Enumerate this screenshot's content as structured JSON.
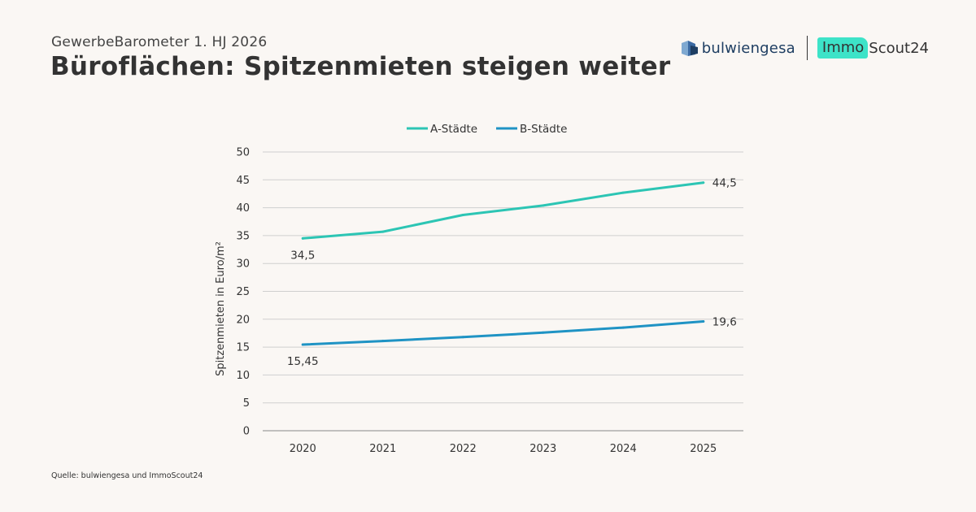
{
  "header": {
    "supertitle": "GewerbeBarometer 1. HJ 2026",
    "title": "Büroflächen: Spitzenmieten steigen weiter"
  },
  "logos": {
    "bulwiengesa": "bulwiengesa",
    "immo": "Immo",
    "scout": "Scout24"
  },
  "source": "Quelle: bulwiengesa und ImmoScout24",
  "chart_data": {
    "type": "line",
    "x": [
      "2020",
      "2021",
      "2022",
      "2023",
      "2024",
      "2025"
    ],
    "series": [
      {
        "name": "A-Städte",
        "color": "#2cc5b4",
        "values": [
          34.5,
          35.7,
          38.7,
          40.4,
          42.7,
          44.5
        ]
      },
      {
        "name": "B-Städte",
        "color": "#1f93c4",
        "values": [
          15.45,
          16.1,
          16.8,
          17.6,
          18.5,
          19.6
        ]
      }
    ],
    "ylabel": "Spitzenmieten in Euro/m²",
    "ylim": [
      0,
      50
    ],
    "yticks": [
      "0",
      "5",
      "10",
      "15",
      "20",
      "25",
      "30",
      "35",
      "40",
      "45",
      "50"
    ],
    "grid": true,
    "legend": "top-center",
    "data_labels": [
      {
        "series": 0,
        "index": 0,
        "text": "34,5",
        "position": "below"
      },
      {
        "series": 0,
        "index": 5,
        "text": "44,5",
        "position": "right"
      },
      {
        "series": 1,
        "index": 0,
        "text": "15,45",
        "position": "below"
      },
      {
        "series": 1,
        "index": 5,
        "text": "19,6",
        "position": "right"
      }
    ]
  }
}
